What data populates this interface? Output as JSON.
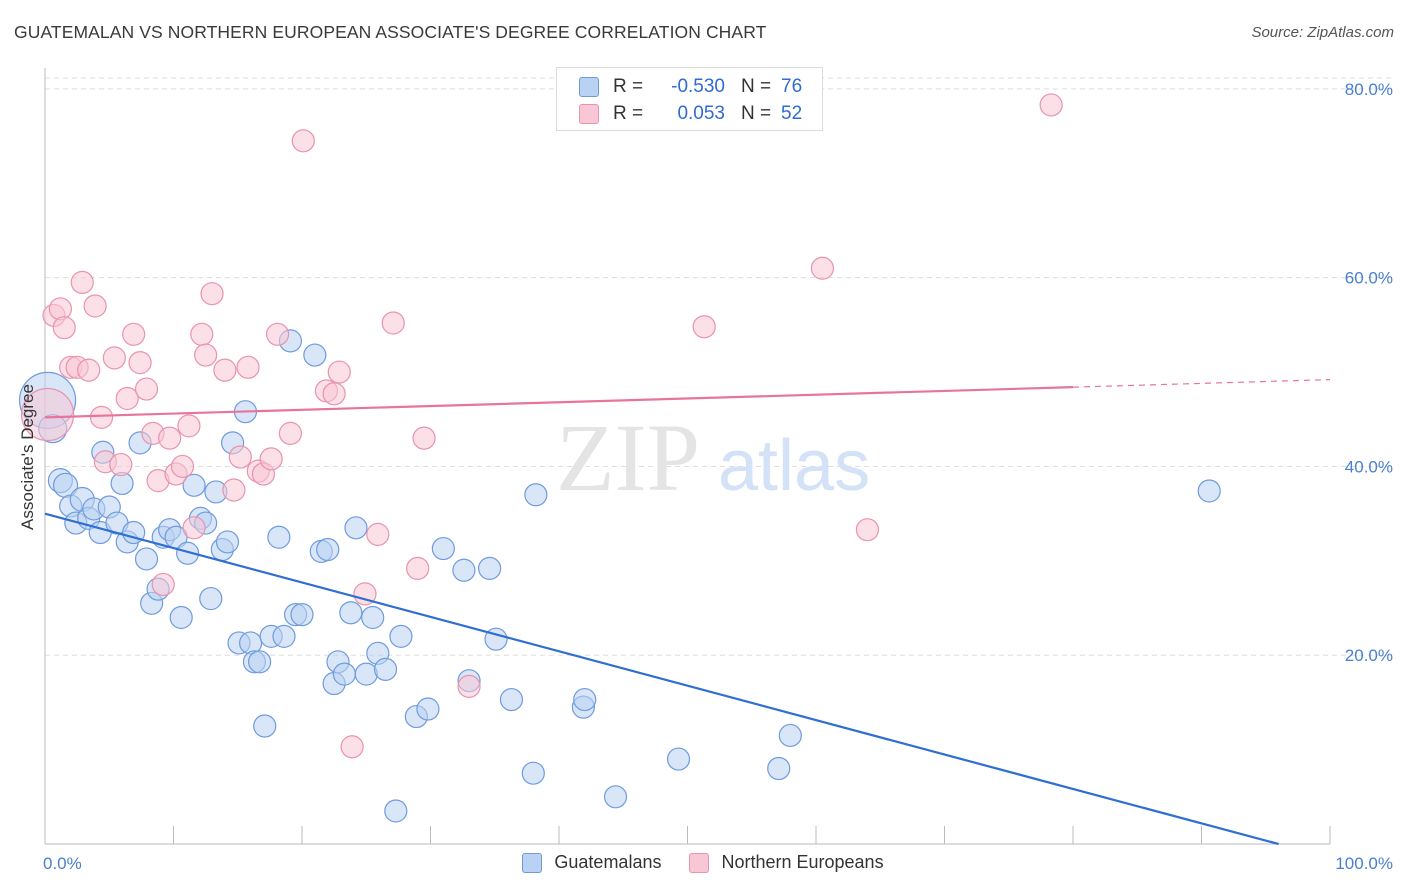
{
  "header": {
    "title": "GUATEMALAN VS NORTHERN EUROPEAN ASSOCIATE'S DEGREE CORRELATION CHART",
    "source": "Source: ZipAtlas.com"
  },
  "watermark": {
    "zip": "ZIP",
    "atlas": "atlas"
  },
  "legend": {
    "rows": [
      {
        "r_label": "R =",
        "r_value": "-0.530",
        "n_label": "N =",
        "n_value": "76"
      },
      {
        "r_label": "R =",
        "r_value": "0.053",
        "n_label": "N =",
        "n_value": "52"
      }
    ]
  },
  "bottom_legend": {
    "series1": "Guatemalans",
    "series2": "Northern Europeans"
  },
  "colors": {
    "blue_fill": "#b9d1f3",
    "blue_stroke": "#6f9bdd",
    "blue_line": "#2f6fd0",
    "pink_fill": "#f8c7d5",
    "pink_stroke": "#e993ad",
    "pink_line": "#e8749b",
    "grid": "#dddddd",
    "tick_text": "#4a7fd0"
  },
  "chart_data": {
    "type": "scatter",
    "title": "GUATEMALAN VS NORTHERN EUROPEAN ASSOCIATE'S DEGREE CORRELATION CHART",
    "xlabel": "",
    "ylabel": "Associate's Degree",
    "xlim": [
      0,
      100
    ],
    "ylim": [
      0,
      82
    ],
    "x_tick_labels": [
      "0.0%",
      "100.0%"
    ],
    "y_ticks": [
      20,
      40,
      60,
      80
    ],
    "y_tick_labels": [
      "20.0%",
      "40.0%",
      "60.0%",
      "80.0%"
    ],
    "grid": true,
    "legend_position": "bottom",
    "series": [
      {
        "name": "Guatemalans",
        "r": -0.53,
        "n": 76,
        "trend": {
          "x0": 0,
          "y0": 35.0,
          "x1": 96,
          "y1": 0
        },
        "points": [
          [
            0.2,
            47,
            28
          ],
          [
            0.6,
            44,
            14
          ],
          [
            1.2,
            38.5,
            12
          ],
          [
            1.6,
            38,
            12
          ],
          [
            2.0,
            35.8,
            11
          ],
          [
            2.4,
            34,
            11
          ],
          [
            2.9,
            36.5,
            12
          ],
          [
            3.4,
            34.5,
            11
          ],
          [
            3.8,
            35.5,
            11
          ],
          [
            4.3,
            33,
            11
          ],
          [
            4.5,
            41.5,
            11
          ],
          [
            5.0,
            35.7,
            11
          ],
          [
            5.6,
            34,
            11
          ],
          [
            6.0,
            38.2,
            11
          ],
          [
            6.4,
            32,
            11
          ],
          [
            6.9,
            33,
            11
          ],
          [
            7.4,
            42.5,
            11
          ],
          [
            7.9,
            30.2,
            11
          ],
          [
            8.3,
            25.5,
            11
          ],
          [
            8.8,
            27,
            11
          ],
          [
            9.2,
            32.5,
            11
          ],
          [
            9.7,
            33.3,
            11
          ],
          [
            10.2,
            32.5,
            11
          ],
          [
            10.6,
            24,
            11
          ],
          [
            11.1,
            30.8,
            11
          ],
          [
            11.6,
            38,
            11
          ],
          [
            12.1,
            34.5,
            11
          ],
          [
            12.5,
            34,
            11
          ],
          [
            12.9,
            26,
            11
          ],
          [
            13.3,
            37.3,
            11
          ],
          [
            13.8,
            31.2,
            11
          ],
          [
            14.2,
            32,
            11
          ],
          [
            14.6,
            42.5,
            11
          ],
          [
            15.1,
            21.3,
            11
          ],
          [
            15.6,
            45.8,
            11
          ],
          [
            16.0,
            21.3,
            11
          ],
          [
            16.3,
            19.3,
            11
          ],
          [
            16.7,
            19.3,
            11
          ],
          [
            17.1,
            12.5,
            11
          ],
          [
            17.6,
            22,
            11
          ],
          [
            18.2,
            32.5,
            11
          ],
          [
            18.6,
            22,
            11
          ],
          [
            19.1,
            53.3,
            11
          ],
          [
            19.5,
            24.3,
            11
          ],
          [
            20.0,
            24.3,
            11
          ],
          [
            21.0,
            51.8,
            11
          ],
          [
            21.5,
            31,
            11
          ],
          [
            22.0,
            31.2,
            11
          ],
          [
            22.5,
            17,
            11
          ],
          [
            22.8,
            19.3,
            11
          ],
          [
            23.3,
            18,
            11
          ],
          [
            23.8,
            24.5,
            11
          ],
          [
            24.2,
            33.5,
            11
          ],
          [
            25.0,
            18,
            11
          ],
          [
            25.5,
            24,
            11
          ],
          [
            25.9,
            20.2,
            11
          ],
          [
            26.5,
            18.5,
            11
          ],
          [
            27.3,
            3.5,
            11
          ],
          [
            27.7,
            22,
            11
          ],
          [
            28.9,
            13.5,
            11
          ],
          [
            29.8,
            14.3,
            11
          ],
          [
            31.0,
            31.3,
            11
          ],
          [
            32.6,
            29,
            11
          ],
          [
            33.0,
            17.3,
            11
          ],
          [
            34.6,
            29.2,
            11
          ],
          [
            35.1,
            21.7,
            11
          ],
          [
            36.3,
            15.3,
            11
          ],
          [
            38.0,
            7.5,
            11
          ],
          [
            38.2,
            37,
            11
          ],
          [
            41.9,
            14.5,
            11
          ],
          [
            42.0,
            15.3,
            11
          ],
          [
            44.4,
            5.0,
            11
          ],
          [
            49.3,
            9.0,
            11
          ],
          [
            57.1,
            8.0,
            11
          ],
          [
            58.0,
            11.5,
            11
          ],
          [
            90.6,
            37.4,
            11
          ]
        ]
      },
      {
        "name": "Northern Europeans",
        "r": 0.053,
        "n": 52,
        "trend": {
          "x0": 0,
          "y0": 45.2,
          "x1": 100,
          "y1": 49.2,
          "solid_until_x": 80
        },
        "points": [
          [
            0.2,
            45.5,
            26
          ],
          [
            0.7,
            56,
            11
          ],
          [
            1.2,
            56.7,
            11
          ],
          [
            1.5,
            54.7,
            11
          ],
          [
            2.0,
            50.5,
            11
          ],
          [
            2.5,
            50.5,
            11
          ],
          [
            2.9,
            59.5,
            11
          ],
          [
            3.4,
            50.2,
            11
          ],
          [
            3.9,
            57,
            11
          ],
          [
            4.4,
            45.2,
            11
          ],
          [
            4.7,
            40.5,
            11
          ],
          [
            5.4,
            51.5,
            11
          ],
          [
            5.9,
            40.2,
            11
          ],
          [
            6.4,
            47.2,
            11
          ],
          [
            6.9,
            54,
            11
          ],
          [
            7.4,
            51,
            11
          ],
          [
            7.9,
            48.2,
            11
          ],
          [
            8.4,
            43.5,
            11
          ],
          [
            8.8,
            38.5,
            11
          ],
          [
            9.2,
            27.5,
            11
          ],
          [
            9.7,
            43,
            11
          ],
          [
            10.2,
            39.2,
            11
          ],
          [
            10.7,
            40,
            11
          ],
          [
            11.2,
            44.3,
            11
          ],
          [
            11.6,
            33.5,
            11
          ],
          [
            12.2,
            54,
            11
          ],
          [
            12.5,
            51.8,
            11
          ],
          [
            13.0,
            58.3,
            11
          ],
          [
            14.0,
            50.2,
            11
          ],
          [
            14.7,
            37.5,
            11
          ],
          [
            15.2,
            41,
            11
          ],
          [
            15.8,
            50.5,
            11
          ],
          [
            16.6,
            39.5,
            11
          ],
          [
            17.0,
            39.2,
            11
          ],
          [
            17.6,
            40.8,
            11
          ],
          [
            18.1,
            54,
            11
          ],
          [
            19.1,
            43.5,
            11
          ],
          [
            20.1,
            74.5,
            11
          ],
          [
            21.9,
            48,
            11
          ],
          [
            22.5,
            47.7,
            11
          ],
          [
            22.9,
            50,
            11
          ],
          [
            23.9,
            10.3,
            11
          ],
          [
            24.9,
            26.5,
            11
          ],
          [
            25.9,
            32.8,
            11
          ],
          [
            27.1,
            55.2,
            11
          ],
          [
            29.0,
            29.2,
            11
          ],
          [
            29.5,
            43,
            11
          ],
          [
            33.0,
            16.7,
            11
          ],
          [
            51.3,
            54.8,
            11
          ],
          [
            60.5,
            61,
            11
          ],
          [
            64.0,
            33.3,
            11
          ],
          [
            78.3,
            78.3,
            11
          ]
        ]
      }
    ]
  }
}
